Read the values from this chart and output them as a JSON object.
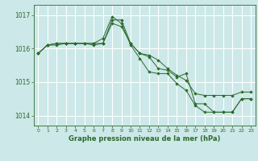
{
  "title": "Graphe pression niveau de la mer (hPa)",
  "bg_color": "#cce8e8",
  "grid_color": "#ffffff",
  "line_color": "#2d6a2d",
  "marker_color": "#2d6a2d",
  "ylim": [
    1013.7,
    1017.3
  ],
  "xlim": [
    -0.5,
    23.5
  ],
  "yticks": [
    1014,
    1015,
    1016,
    1017
  ],
  "xticks": [
    0,
    1,
    2,
    3,
    4,
    5,
    6,
    7,
    8,
    9,
    10,
    11,
    12,
    13,
    14,
    15,
    16,
    17,
    18,
    19,
    20,
    21,
    22,
    23
  ],
  "series": [
    [
      1015.85,
      1016.1,
      1016.15,
      1016.15,
      1016.15,
      1016.15,
      1016.1,
      1016.15,
      1016.75,
      1016.65,
      1016.15,
      1015.85,
      1015.8,
      1015.65,
      1015.4,
      1015.2,
      1015.05,
      1014.65,
      1014.6,
      1014.6,
      1014.6,
      1014.6,
      1014.7,
      1014.7
    ],
    [
      1015.85,
      1016.1,
      1016.15,
      1016.15,
      1016.15,
      1016.15,
      1016.15,
      1016.3,
      1016.95,
      1016.75,
      1016.1,
      1015.7,
      1015.3,
      1015.25,
      1015.25,
      1014.95,
      1014.75,
      1014.3,
      1014.1,
      1014.1,
      1014.1,
      1014.1,
      1014.5,
      1014.5
    ],
    [
      1015.85,
      1016.1,
      1016.1,
      1016.15,
      1016.15,
      1016.15,
      1016.15,
      1016.15,
      1016.85,
      1016.85,
      1016.15,
      1015.85,
      1015.75,
      1015.4,
      1015.35,
      1015.15,
      1015.25,
      1014.35,
      1014.35,
      1014.1,
      1014.1,
      1014.1,
      1014.5,
      1014.5
    ]
  ]
}
